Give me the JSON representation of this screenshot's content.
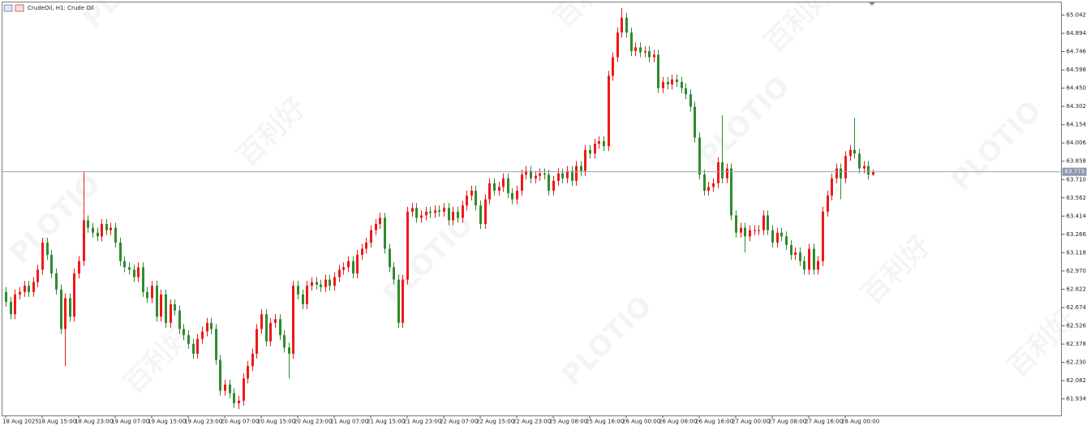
{
  "chart_data": {
    "type": "candlestick",
    "title": "CrudeOil, H1:  Crude Oil",
    "watermark": {
      "brand": "PLOTIO",
      "chinese": "百利好"
    },
    "up_color": "#f01818",
    "down_color": "#2e8b2e",
    "grid": false,
    "ylim": [
      61.797,
      65.147
    ],
    "yticks": [
      65.042,
      64.894,
      64.746,
      64.598,
      {
        "value": 64.45,
        "label": "64.450"
      },
      64.302,
      64.154,
      64.006,
      63.858,
      {
        "value": 63.71,
        "label": "63.710"
      },
      63.562,
      63.414,
      63.266,
      63.118,
      {
        "value": 62.97,
        "label": "62.970"
      },
      62.822,
      62.674,
      62.526,
      62.378,
      {
        "value": 62.23,
        "label": "62.230"
      },
      62.082,
      61.934
    ],
    "current_price": 63.773,
    "categories": [
      "18 Aug 2025",
      null,
      null,
      null,
      null,
      null,
      null,
      null,
      "18 Aug 15:00",
      null,
      null,
      null,
      null,
      null,
      null,
      null,
      "18 Aug 23:00",
      null,
      null,
      null,
      null,
      null,
      null,
      null,
      "19 Aug 07:00",
      null,
      null,
      null,
      null,
      null,
      null,
      null,
      "19 Aug 15:00",
      null,
      null,
      null,
      null,
      null,
      null,
      null,
      "19 Aug 23:00",
      null,
      null,
      null,
      null,
      null,
      null,
      null,
      "20 Aug 07:00",
      null,
      null,
      null,
      null,
      null,
      null,
      null,
      "20 Aug 15:00",
      null,
      null,
      null,
      null,
      null,
      null,
      null,
      "20 Aug 23:00",
      null,
      null,
      null,
      null,
      null,
      null,
      null,
      "21 Aug 07:00",
      null,
      null,
      null,
      null,
      null,
      null,
      null,
      "21 Aug 15:00",
      null,
      null,
      null,
      null,
      null,
      null,
      null,
      "21 Aug 23:00",
      null,
      null,
      null,
      null,
      null,
      null,
      null,
      "22 Aug 07:00",
      null,
      null,
      null,
      null,
      null,
      null,
      null,
      "22 Aug 15:00",
      null,
      null,
      null,
      null,
      null,
      null,
      null,
      "22 Aug 23:00",
      null,
      null,
      null,
      null,
      null,
      null,
      null,
      "25 Aug 08:00",
      null,
      null,
      null,
      null,
      null,
      null,
      null,
      "25 Aug 16:00",
      null,
      null,
      null,
      null,
      null,
      null,
      null,
      "26 Aug 00:00",
      null,
      null,
      null,
      null,
      null,
      null,
      null,
      "26 Aug 08:00",
      null,
      null,
      null,
      null,
      null,
      null,
      null,
      "26 Aug 16:00",
      null,
      null,
      null,
      null,
      null,
      null,
      null,
      "27 Aug 00:00",
      null,
      null,
      null,
      null,
      null,
      null,
      null,
      "27 Aug 08:00",
      null,
      null,
      null,
      null,
      null,
      null,
      null,
      "27 Aug 16:00",
      null,
      null,
      null,
      null,
      null,
      null,
      null,
      "28 Aug 00:00",
      null,
      null,
      null,
      null,
      null,
      null
    ],
    "open": [
      62.8,
      62.72,
      62.62,
      62.78,
      62.8,
      62.85,
      62.8,
      62.88,
      62.98,
      63.2,
      63.1,
      62.95,
      62.82,
      62.5,
      62.75,
      62.6,
      62.95,
      63.05,
      63.38,
      63.32,
      63.28,
      63.25,
      63.35,
      63.3,
      63.32,
      63.2,
      63.05,
      63.0,
      62.98,
      62.92,
      63.0,
      62.8,
      62.75,
      62.85,
      62.6,
      62.78,
      62.55,
      62.7,
      62.65,
      62.5,
      62.45,
      62.38,
      62.3,
      62.42,
      62.48,
      62.55,
      62.5,
      62.25,
      62.0,
      62.05,
      61.98,
      61.9,
      61.92,
      62.1,
      62.2,
      62.3,
      62.5,
      62.62,
      62.4,
      62.55,
      62.58,
      62.45,
      62.35,
      62.3,
      62.85,
      62.78,
      62.7,
      62.85,
      62.88,
      62.86,
      62.84,
      62.9,
      62.85,
      62.92,
      62.98,
      63.0,
      63.05,
      62.95,
      63.1,
      63.15,
      63.2,
      63.3,
      63.35,
      63.4,
      63.15,
      63.0,
      62.9,
      62.55,
      62.9,
      63.45,
      63.48,
      63.4,
      63.42,
      63.45,
      63.44,
      63.46,
      63.45,
      63.48,
      63.38,
      63.45,
      63.4,
      63.5,
      63.58,
      63.62,
      63.5,
      63.35,
      63.55,
      63.68,
      63.62,
      63.65,
      63.72,
      63.6,
      63.55,
      63.62,
      63.75,
      63.78,
      63.72,
      63.74,
      63.76,
      63.75,
      63.62,
      63.7,
      63.76,
      63.72,
      63.78,
      63.7,
      63.82,
      63.78,
      63.95,
      63.92,
      64.0,
      64.02,
      63.98,
      64.55,
      64.7,
      64.9,
      65.02,
      64.9,
      64.75,
      64.78,
      64.74,
      64.75,
      64.7,
      64.72,
      64.45,
      64.5,
      64.48,
      64.52,
      64.5,
      64.45,
      64.4,
      64.3,
      64.05,
      63.75,
      63.62,
      63.65,
      63.68,
      63.85,
      63.72,
      63.8,
      63.42,
      63.28,
      63.32,
      63.25,
      63.3,
      63.3,
      63.3,
      63.42,
      63.3,
      63.2,
      63.28,
      63.25,
      63.18,
      63.1,
      63.12,
      63.05,
      62.98,
      63.15,
      62.98,
      63.05,
      63.45,
      63.58,
      63.72,
      63.8,
      63.72,
      63.9,
      63.95,
      63.92,
      63.8,
      63.82,
      63.75
    ],
    "high": [
      62.84,
      62.76,
      62.82,
      62.84,
      62.89,
      62.89,
      62.92,
      63.02,
      63.24,
      63.24,
      63.14,
      62.99,
      62.86,
      62.79,
      62.79,
      62.99,
      63.09,
      63.77,
      63.42,
      63.36,
      63.32,
      63.39,
      63.39,
      63.36,
      63.36,
      63.24,
      63.09,
      63.04,
      63.02,
      63.04,
      63.04,
      62.84,
      62.89,
      62.89,
      62.82,
      62.82,
      62.74,
      62.74,
      62.69,
      62.54,
      62.49,
      62.42,
      62.46,
      62.52,
      62.59,
      62.59,
      62.54,
      62.29,
      62.09,
      62.09,
      62.02,
      61.96,
      62.14,
      62.24,
      62.34,
      62.54,
      62.66,
      62.66,
      62.59,
      62.62,
      62.62,
      62.49,
      62.39,
      62.89,
      62.89,
      62.82,
      62.89,
      62.92,
      62.92,
      62.9,
      62.94,
      62.94,
      62.96,
      63.02,
      63.04,
      63.09,
      63.09,
      63.14,
      63.19,
      63.24,
      63.34,
      63.39,
      63.44,
      63.44,
      63.19,
      63.04,
      62.94,
      62.94,
      63.49,
      63.52,
      63.52,
      63.46,
      63.49,
      63.49,
      63.5,
      63.5,
      63.52,
      63.52,
      63.49,
      63.49,
      63.54,
      63.62,
      63.66,
      63.66,
      63.54,
      63.59,
      63.72,
      63.72,
      63.69,
      63.76,
      63.76,
      63.64,
      63.66,
      63.79,
      63.82,
      63.82,
      63.78,
      63.8,
      63.8,
      63.79,
      63.74,
      63.8,
      63.8,
      63.82,
      63.82,
      63.86,
      63.86,
      63.99,
      63.99,
      64.04,
      64.06,
      64.06,
      64.59,
      64.74,
      64.94,
      65.1,
      65.06,
      64.94,
      64.82,
      64.82,
      64.79,
      64.79,
      64.76,
      64.76,
      64.54,
      64.54,
      64.56,
      64.56,
      64.54,
      64.49,
      64.44,
      64.34,
      64.09,
      63.79,
      63.69,
      63.72,
      63.89,
      64.23,
      63.84,
      63.84,
      63.46,
      63.36,
      63.36,
      63.34,
      63.34,
      63.34,
      63.46,
      63.46,
      63.34,
      63.32,
      63.32,
      63.29,
      63.22,
      63.16,
      63.16,
      63.09,
      63.19,
      63.19,
      63.09,
      63.49,
      63.62,
      63.76,
      63.84,
      63.84,
      63.94,
      63.99,
      64.21,
      63.96,
      63.86,
      63.86,
      63.79
    ],
    "low": [
      62.68,
      62.58,
      62.58,
      62.74,
      62.76,
      62.76,
      62.76,
      62.84,
      62.94,
      63.06,
      62.91,
      62.78,
      62.46,
      62.2,
      62.56,
      62.56,
      62.91,
      63.01,
      63.28,
      63.24,
      63.21,
      63.21,
      63.26,
      63.26,
      63.16,
      63.01,
      62.96,
      62.94,
      62.88,
      62.88,
      62.76,
      62.71,
      62.71,
      62.56,
      62.56,
      62.51,
      62.51,
      62.61,
      62.46,
      62.41,
      62.34,
      62.26,
      62.26,
      62.38,
      62.44,
      62.46,
      62.21,
      61.96,
      61.96,
      61.94,
      61.86,
      61.85,
      61.88,
      62.06,
      62.16,
      62.26,
      62.46,
      62.36,
      62.36,
      62.51,
      62.41,
      62.31,
      62.1,
      62.26,
      62.74,
      62.66,
      62.66,
      62.81,
      62.82,
      62.8,
      62.8,
      62.81,
      62.81,
      62.88,
      62.94,
      62.96,
      62.91,
      62.91,
      63.06,
      63.11,
      63.16,
      63.26,
      63.31,
      63.11,
      62.96,
      62.86,
      62.51,
      62.51,
      62.86,
      63.41,
      63.36,
      63.36,
      63.38,
      63.4,
      63.4,
      63.41,
      63.41,
      63.34,
      63.34,
      63.36,
      63.36,
      63.46,
      63.54,
      63.46,
      63.31,
      63.31,
      63.51,
      63.58,
      63.58,
      63.61,
      63.56,
      63.51,
      63.51,
      63.58,
      63.71,
      63.68,
      63.68,
      63.7,
      63.71,
      63.58,
      63.58,
      63.66,
      63.68,
      63.68,
      63.66,
      63.66,
      63.74,
      63.74,
      63.88,
      63.88,
      63.96,
      63.94,
      63.94,
      64.51,
      64.66,
      64.86,
      64.86,
      64.71,
      64.71,
      64.7,
      64.7,
      64.66,
      64.66,
      64.41,
      64.41,
      64.44,
      64.44,
      64.46,
      64.41,
      64.36,
      64.26,
      64.01,
      63.71,
      63.58,
      63.58,
      63.61,
      63.64,
      63.68,
      63.68,
      63.38,
      63.24,
      63.24,
      63.12,
      63.21,
      63.26,
      63.26,
      63.26,
      63.26,
      63.16,
      63.16,
      63.21,
      63.14,
      63.06,
      63.06,
      63.01,
      62.94,
      62.94,
      62.94,
      62.94,
      63.01,
      63.41,
      63.54,
      63.68,
      63.55,
      63.68,
      63.86,
      63.88,
      63.76,
      63.76,
      63.71,
      63.74
    ],
    "close": [
      62.72,
      62.62,
      62.78,
      62.8,
      62.85,
      62.8,
      62.88,
      62.98,
      63.2,
      63.1,
      62.95,
      62.82,
      62.5,
      62.75,
      62.6,
      62.95,
      63.05,
      63.38,
      63.32,
      63.28,
      63.25,
      63.35,
      63.3,
      63.32,
      63.2,
      63.05,
      63.0,
      62.98,
      62.92,
      63.0,
      62.8,
      62.75,
      62.85,
      62.6,
      62.78,
      62.55,
      62.7,
      62.65,
      62.5,
      62.45,
      62.38,
      62.3,
      62.42,
      62.48,
      62.55,
      62.5,
      62.25,
      62.0,
      62.05,
      61.98,
      61.9,
      61.92,
      62.1,
      62.2,
      62.3,
      62.5,
      62.62,
      62.4,
      62.55,
      62.58,
      62.45,
      62.35,
      62.3,
      62.85,
      62.78,
      62.7,
      62.85,
      62.88,
      62.86,
      62.84,
      62.9,
      62.85,
      62.92,
      62.98,
      63.0,
      63.05,
      62.95,
      63.1,
      63.15,
      63.2,
      63.3,
      63.35,
      63.4,
      63.15,
      63.0,
      62.9,
      62.55,
      62.9,
      63.45,
      63.48,
      63.4,
      63.42,
      63.45,
      63.44,
      63.46,
      63.45,
      63.48,
      63.38,
      63.45,
      63.4,
      63.5,
      63.58,
      63.62,
      63.5,
      63.35,
      63.55,
      63.68,
      63.62,
      63.65,
      63.72,
      63.6,
      63.55,
      63.62,
      63.75,
      63.78,
      63.72,
      63.74,
      63.76,
      63.75,
      63.62,
      63.7,
      63.76,
      63.72,
      63.78,
      63.7,
      63.82,
      63.78,
      63.95,
      63.92,
      64.0,
      64.02,
      63.98,
      64.55,
      64.7,
      64.9,
      65.02,
      64.9,
      64.75,
      64.78,
      64.74,
      64.75,
      64.7,
      64.72,
      64.45,
      64.5,
      64.48,
      64.52,
      64.5,
      64.45,
      64.4,
      64.3,
      64.05,
      63.75,
      63.62,
      63.65,
      63.68,
      63.85,
      63.72,
      63.8,
      63.42,
      63.28,
      63.32,
      63.25,
      63.3,
      63.3,
      63.3,
      63.42,
      63.3,
      63.2,
      63.28,
      63.25,
      63.18,
      63.1,
      63.12,
      63.05,
      62.98,
      63.15,
      62.98,
      63.05,
      63.45,
      63.58,
      63.72,
      63.8,
      63.72,
      63.9,
      63.95,
      63.92,
      63.8,
      63.82,
      63.75,
      63.773
    ]
  }
}
